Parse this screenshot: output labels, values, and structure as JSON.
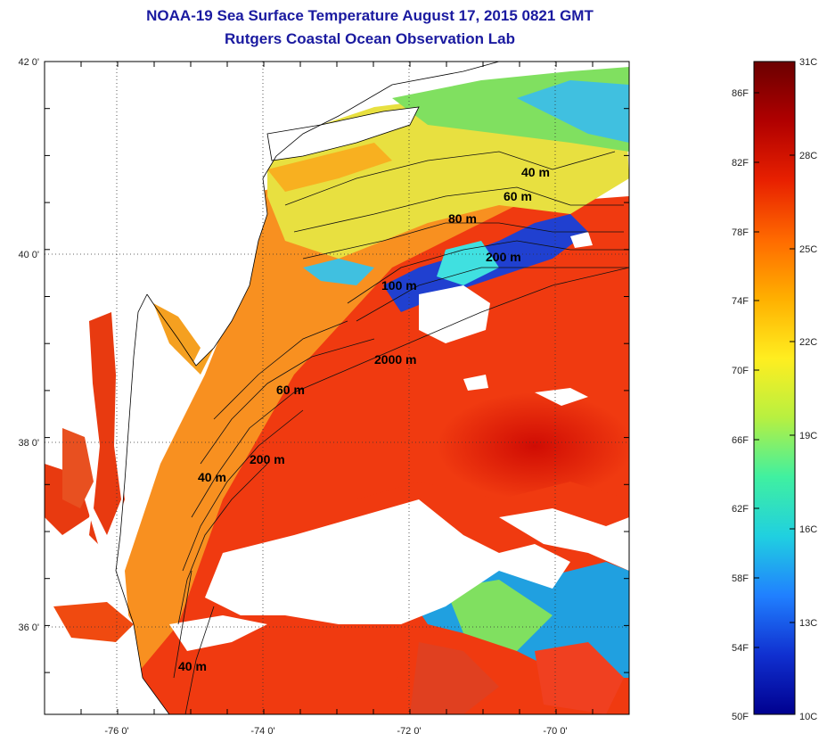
{
  "header": {
    "title": "NOAA-19 Sea Surface Temperature August 17, 2015 0821 GMT",
    "subtitle": "Rutgers Coastal Ocean Observation Lab"
  },
  "map": {
    "lat_ticks": [
      "42 0'",
      "40 0'",
      "38 0'",
      "36 0'"
    ],
    "lon_ticks": [
      "-76 0'",
      "-74 0'",
      "-72 0'",
      "-70 0'"
    ],
    "depth_labels": [
      "40 m",
      "60 m",
      "80 m",
      "200 m",
      "100 m",
      "2000 m",
      "60 m",
      "200 m",
      "40 m",
      "40 m"
    ]
  },
  "colorbar": {
    "left_labels": [
      "86F",
      "82F",
      "78F",
      "74F",
      "70F",
      "66F",
      "62F",
      "58F",
      "54F",
      "50F"
    ],
    "right_labels": [
      "31C",
      "28C",
      "25C",
      "22C",
      "19C",
      "16C",
      "13C",
      "10C"
    ],
    "colors": [
      "#6b0000",
      "#b00000",
      "#e82000",
      "#ff6a00",
      "#ffb000",
      "#ffee20",
      "#b8f040",
      "#40f0a0",
      "#20d0e0",
      "#2080ff",
      "#1030d0",
      "#00008f"
    ]
  }
}
